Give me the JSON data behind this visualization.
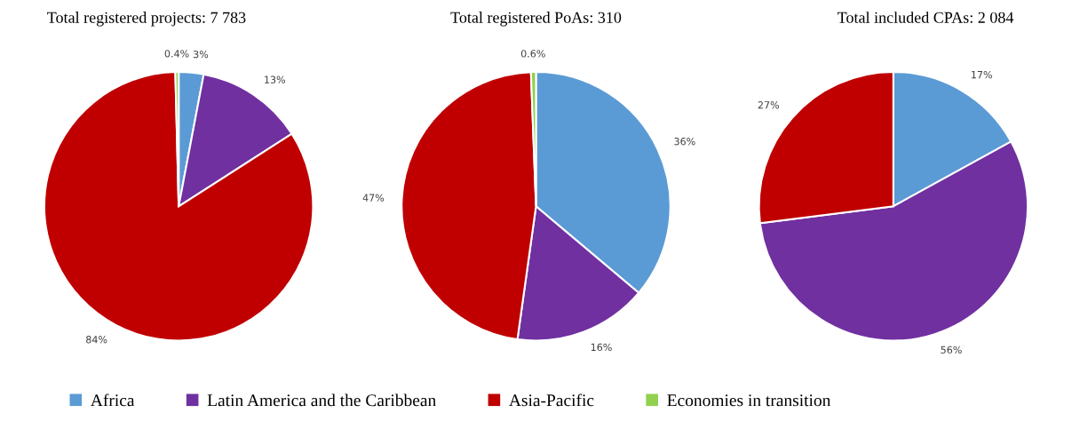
{
  "chart_data": [
    {
      "type": "pie",
      "title": "Total registered projects: 7 783",
      "categories": [
        "Africa",
        "Latin America and the Caribbean",
        "Asia-Pacific",
        "Economies in transition"
      ],
      "values": [
        3,
        13,
        84,
        0.4
      ],
      "value_labels": [
        "3%",
        "13%",
        "84%",
        "0.4%"
      ],
      "colors": [
        "#5b9bd5",
        "#7030a0",
        "#c00000",
        "#92d050"
      ],
      "legend": "bottom"
    },
    {
      "type": "pie",
      "title": "Total registered PoAs: 310",
      "categories": [
        null,
        null,
        null,
        null
      ],
      "values": [
        36,
        16,
        47,
        0.6
      ],
      "value_labels": [
        "36%",
        "16%",
        "47%",
        "0.6%"
      ],
      "colors": [
        "#5b9bd5",
        "#7030a0",
        "#c00000",
        "#92d050"
      ]
    },
    {
      "type": "pie",
      "title": "Total included CPAs: 2 084",
      "categories": [
        null,
        null,
        null
      ],
      "values": [
        17,
        56,
        27
      ],
      "value_labels": [
        "17%",
        "56%",
        "27%"
      ],
      "colors": [
        "#5b9bd5",
        "#7030a0",
        "#c00000"
      ]
    }
  ]
}
